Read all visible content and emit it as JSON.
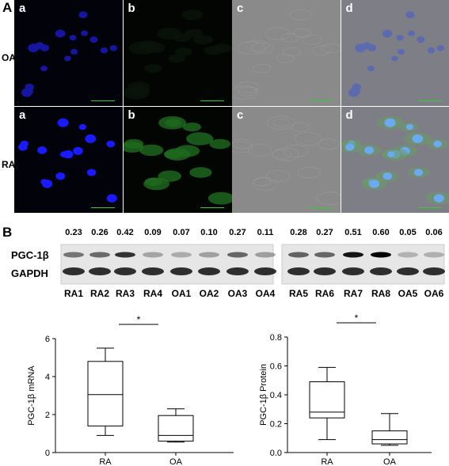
{
  "panel_a": {
    "label": "A",
    "columns": [
      "a",
      "b",
      "c",
      "d"
    ],
    "rows": [
      "OA",
      "RA"
    ],
    "scale_bar": "50 μm"
  },
  "panel_b": {
    "label": "B",
    "blot": {
      "densities": [
        "0.23",
        "0.26",
        "0.42",
        "0.09",
        "0.07",
        "0.10",
        "0.27",
        "0.11",
        "0.28",
        "0.27",
        "0.51",
        "0.60",
        "0.05",
        "0.06"
      ],
      "lanes": [
        "RA1",
        "RA2",
        "RA3",
        "RA4",
        "OA1",
        "OA2",
        "OA3",
        "OA4",
        "RA5",
        "RA6",
        "RA7",
        "RA8",
        "OA5",
        "OA6"
      ],
      "rows": [
        "PGC-1β",
        "GAPDH"
      ]
    }
  },
  "chart_data": [
    {
      "type": "box",
      "ylabel": "PGC-1β  mRNA",
      "categories": [
        "RA",
        "OA"
      ],
      "boxes": [
        {
          "min": 0.9,
          "q1": 1.4,
          "median": 3.05,
          "q3": 4.8,
          "max": 5.5
        },
        {
          "min": 0.55,
          "q1": 0.6,
          "median": 0.9,
          "q3": 1.95,
          "max": 2.3
        }
      ],
      "ylim": [
        0,
        6
      ],
      "yticks": [
        0,
        2,
        4,
        6
      ],
      "annotation": "*"
    },
    {
      "type": "box",
      "ylabel": "PGC-1β  Protein",
      "categories": [
        "RA",
        "OA"
      ],
      "boxes": [
        {
          "min": 0.09,
          "q1": 0.24,
          "median": 0.28,
          "q3": 0.49,
          "max": 0.59
        },
        {
          "min": 0.05,
          "q1": 0.06,
          "median": 0.09,
          "q3": 0.15,
          "max": 0.27
        }
      ],
      "ylim": [
        0,
        0.8
      ],
      "yticks": [
        {
          "value": 0,
          "label": "0.0"
        },
        0.2,
        0.4,
        0.6,
        0.8
      ],
      "annotation": "*"
    }
  ]
}
